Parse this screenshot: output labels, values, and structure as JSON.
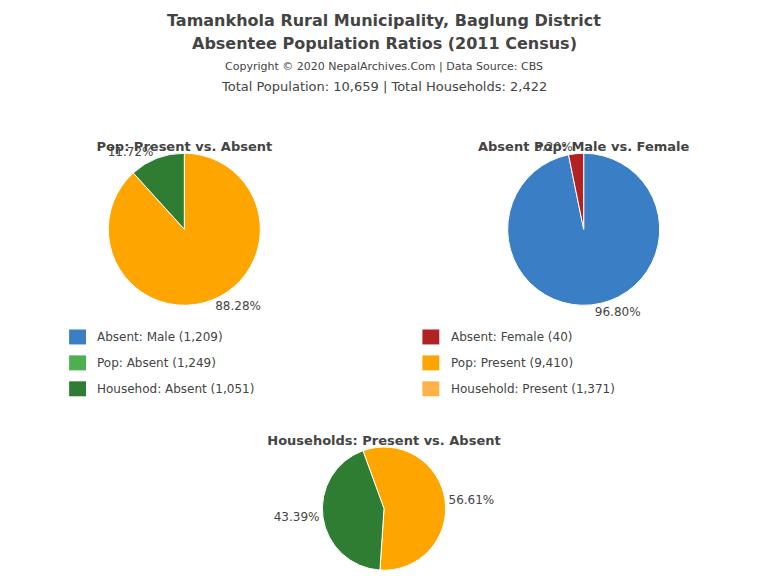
{
  "title": [
    "Tamankhola Rural Municipality, Baglung District",
    "Absentee Population Ratios (2011 Census)"
  ],
  "subtitle": [
    "Copyright © 2020 NepalArchives.Com | Data Source: CBS",
    "Total Population: 10,659 | Total Households: 2,422"
  ],
  "annotations": [
    {
      "text": "Absent: Male (1,209)",
      "color": "#3A7EC6"
    },
    {
      "text": "Absent: Female (40)",
      "color": "#B22222"
    },
    {
      "text": "Pop: Absent (1,249)",
      "color": "#4CAF50"
    },
    {
      "text": "Pop: Present (9,410)",
      "color": "#FFA500"
    },
    {
      "text": "Househod: Absent (1,051)",
      "color": "#2E7D32"
    },
    {
      "text": "Household: Present (1,371)",
      "color": "#FFB347"
    }
  ],
  "chart_data": [
    {
      "type": "pie",
      "title": "Pop: Present vs. Absent",
      "values": [
        88.28,
        11.72
      ],
      "value_labels": [
        "88.28%",
        "11.72%"
      ],
      "colors": [
        "#FFA500",
        "#2E7D32"
      ],
      "data_labels": true
    },
    {
      "type": "pie",
      "title": "Absent Pop: Male vs. Female",
      "values": [
        96.8,
        3.2
      ],
      "value_labels": [
        "96.80%",
        "3.20%"
      ],
      "colors": [
        "#3A7EC6",
        "#B22222"
      ],
      "data_labels": true
    },
    {
      "type": "pie",
      "title": "Households: Present vs. Absent",
      "values": [
        56.61,
        43.39
      ],
      "value_labels": [
        "56.61%",
        "43.39%"
      ],
      "colors": [
        "#FFA500",
        "#2E7D32"
      ],
      "data_labels": true
    }
  ]
}
